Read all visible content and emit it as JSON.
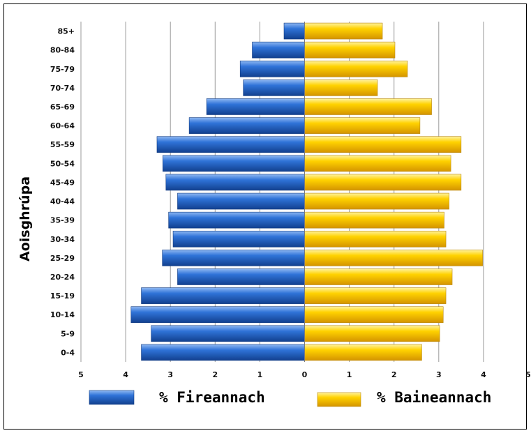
{
  "chart_data": {
    "type": "bar",
    "orientation": "horizontal",
    "subtype": "population-pyramid",
    "ylabel": "Aoisghrúpa",
    "categories": [
      "0-4",
      "5-9",
      "10-14",
      "15-19",
      "20-24",
      "25-29",
      "30-34",
      "35-39",
      "40-44",
      "45-49",
      "50-54",
      "55-59",
      "60-64",
      "65-69",
      "70-74",
      "75-79",
      "80-84",
      "85+"
    ],
    "series": [
      {
        "name": "% Fireannach",
        "color": "#2f6fd3",
        "values": [
          3.65,
          3.43,
          3.88,
          3.65,
          2.84,
          3.18,
          2.94,
          3.04,
          2.84,
          3.1,
          3.17,
          3.3,
          2.58,
          2.19,
          1.37,
          1.44,
          1.17,
          0.46
        ]
      },
      {
        "name": "% Baineannach",
        "color": "#ffcc00",
        "values": [
          2.62,
          3.02,
          3.1,
          3.16,
          3.3,
          3.98,
          3.16,
          3.12,
          3.23,
          3.5,
          3.27,
          3.5,
          2.58,
          2.84,
          1.63,
          2.3,
          2.02,
          1.74
        ]
      }
    ],
    "xlim": [
      -5,
      5
    ],
    "x_ticks": [
      -5,
      -4,
      -3,
      -2,
      -1,
      0,
      1,
      2,
      3,
      4,
      5
    ],
    "x_tick_labels": [
      "5",
      "4",
      "3",
      "2",
      "1",
      "0",
      "1",
      "2",
      "3",
      "4",
      "5"
    ],
    "grid": "vertical",
    "legend_position": "bottom"
  }
}
